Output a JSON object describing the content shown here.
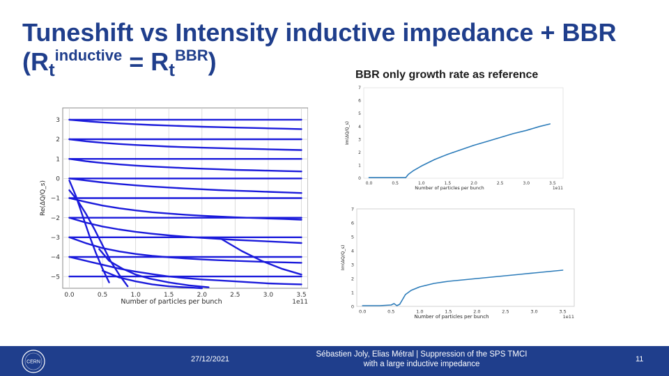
{
  "slide": {
    "title_line1": "Tuneshift vs Intensity inductive impedance + BBR",
    "title_open": "(R",
    "title_sub1": "t",
    "title_sup1": "inductive",
    "title_equals": " = R",
    "title_sub2": "t",
    "title_sup2": "BBR",
    "title_close": ")",
    "subtitle": "BBR only growth rate as reference"
  },
  "footer": {
    "date": "27/12/2021",
    "authors_line1": "Sébastien Joly, Elias Métral | Suppression of the SPS TMCI",
    "authors_line2": "with a large inductive impedance",
    "page_number": "11",
    "logo_text": "CERN"
  },
  "colors": {
    "brand": "#1f3e8c",
    "mode_line": "#1a1adb",
    "growth_line": "#2b7bb9"
  },
  "chart_data": [
    {
      "type": "line",
      "xlabel": "Number of particles per bunch",
      "ylabel": "Re(ΔQ/Q_s)",
      "x_offset_label": "1e11",
      "x_ticks": [
        "0.0",
        "0.5",
        "1.0",
        "1.5",
        "2.0",
        "2.5",
        "3.0",
        "3.5"
      ],
      "y_ticks": [
        "−5",
        "−4",
        "−3",
        "−2",
        "−1",
        "0",
        "1",
        "2",
        "3"
      ],
      "xlim": [
        -0.1,
        3.6
      ],
      "ylim": [
        -5.6,
        3.6
      ],
      "grid": true,
      "series_x": [
        0.0,
        0.25,
        0.5,
        0.75,
        1.0,
        1.25,
        1.5,
        1.75,
        2.0,
        2.25,
        2.5,
        2.75,
        3.0,
        3.25,
        3.5
      ],
      "series": [
        {
          "values": [
            3.0,
            3.0,
            3.0,
            3.0,
            3.0,
            3.0,
            3.0,
            3.0,
            3.0,
            3.0,
            3.0,
            3.0,
            3.0,
            3.0,
            3.0
          ]
        },
        {
          "values": [
            3.0,
            2.92,
            2.86,
            2.81,
            2.77,
            2.73,
            2.7,
            2.67,
            2.64,
            2.62,
            2.6,
            2.58,
            2.56,
            2.54,
            2.52
          ]
        },
        {
          "values": [
            2.0,
            2.0,
            2.0,
            2.0,
            2.0,
            2.0,
            2.0,
            2.0,
            2.0,
            2.0,
            2.0,
            2.0,
            2.0,
            2.0,
            2.0
          ]
        },
        {
          "values": [
            2.0,
            1.9,
            1.82,
            1.76,
            1.71,
            1.67,
            1.63,
            1.6,
            1.57,
            1.55,
            1.53,
            1.51,
            1.49,
            1.47,
            1.45
          ]
        },
        {
          "values": [
            1.0,
            1.0,
            1.0,
            1.0,
            1.0,
            1.0,
            1.0,
            1.0,
            1.0,
            1.0,
            1.0,
            1.0,
            1.0,
            1.0,
            1.0
          ]
        },
        {
          "values": [
            1.0,
            0.88,
            0.79,
            0.72,
            0.66,
            0.61,
            0.57,
            0.53,
            0.5,
            0.47,
            0.44,
            0.42,
            0.4,
            0.38,
            0.36
          ]
        },
        {
          "values": [
            0.0,
            0.0,
            0.0,
            0.0,
            0.0,
            0.0,
            0.0,
            0.0,
            0.0,
            0.0,
            0.0,
            0.0,
            0.0,
            0.0,
            0.0
          ]
        },
        {
          "values": [
            0.0,
            -0.1,
            -0.2,
            -0.28,
            -0.35,
            -0.41,
            -0.46,
            -0.51,
            -0.55,
            -0.59,
            -0.62,
            -0.65,
            -0.68,
            -0.71,
            -0.74
          ]
        },
        {
          "values": [
            -1.0,
            -1.0,
            -1.0,
            -1.0,
            -1.0,
            -1.0,
            -1.0,
            -1.0,
            -1.0,
            -1.0,
            -1.0,
            -1.0,
            -1.0,
            -1.0,
            -1.0
          ]
        },
        {
          "values": [
            -1.0,
            -1.2,
            -1.38,
            -1.52,
            -1.63,
            -1.72,
            -1.79,
            -1.85,
            -1.9,
            -1.94,
            -1.98,
            -2.01,
            -2.04,
            -2.07,
            -2.1
          ]
        },
        {
          "values": [
            -2.0,
            -2.0,
            -2.0,
            -2.0,
            -2.0,
            -2.0,
            -2.0,
            -2.0,
            -2.0,
            -2.0,
            -2.0,
            -2.0,
            -2.0,
            -2.0,
            -2.0
          ]
        },
        {
          "values": [
            -2.0,
            -2.25,
            -2.45,
            -2.6,
            -2.72,
            -2.82,
            -2.9,
            -2.97,
            -3.03,
            -3.08,
            -3.13,
            -3.17,
            -3.21,
            -3.25,
            -3.29
          ]
        },
        {
          "values": [
            -3.0,
            -3.0,
            -3.0,
            -3.0,
            -3.0,
            -3.0,
            -3.0,
            -3.0,
            -3.0,
            -3.0,
            -3.0,
            -3.0,
            -3.0,
            -3.0,
            -3.0
          ]
        },
        {
          "values": [
            -3.0,
            -3.3,
            -3.55,
            -3.72,
            -3.85,
            -3.95,
            -4.02,
            -4.08,
            -4.13,
            -4.17,
            -4.2,
            -4.23,
            -4.26,
            -4.28,
            -4.3
          ]
        },
        {
          "values": [
            -4.0,
            -4.0,
            -4.0,
            -4.0,
            -4.0,
            -4.0,
            -4.0,
            -4.0,
            -4.0,
            -4.0,
            -4.0,
            -4.0,
            -4.0,
            -4.0,
            -4.0
          ]
        },
        {
          "values": [
            -4.0,
            -4.2,
            -4.4,
            -4.6,
            -4.75,
            -4.88,
            -5.0,
            -5.08,
            -5.15,
            -5.2,
            -5.25,
            -5.3,
            -5.35,
            -5.38,
            -5.4
          ]
        },
        {
          "values": [
            -5.0,
            -5.0,
            -5.0,
            -5.0,
            -5.0,
            -5.0,
            -5.0,
            -5.0,
            -5.0,
            -5.0,
            -5.0,
            -5.0,
            -5.0,
            -5.0,
            -5.0
          ]
        }
      ],
      "extra_curves": [
        {
          "x": [
            0.0,
            0.12,
            0.25,
            0.38,
            0.5,
            0.62,
            0.75,
            0.88
          ],
          "y": [
            -0.6,
            -1.1,
            -1.8,
            -2.6,
            -3.4,
            -4.2,
            -4.9,
            -5.5
          ]
        },
        {
          "x": [
            0.0,
            0.1,
            0.2,
            0.3,
            0.4,
            0.5,
            0.6
          ],
          "y": [
            -0.1,
            -0.9,
            -1.9,
            -2.9,
            -3.8,
            -4.6,
            -5.3
          ]
        },
        {
          "x": [
            0.45,
            0.6,
            0.8,
            1.0,
            1.2,
            1.5,
            1.8,
            2.1
          ],
          "y": [
            -3.6,
            -4.2,
            -4.6,
            -4.9,
            -5.1,
            -5.3,
            -5.45,
            -5.55
          ]
        },
        {
          "x": [
            0.5,
            0.75,
            1.0,
            1.25,
            1.5,
            1.75,
            2.0
          ],
          "y": [
            -4.7,
            -5.05,
            -5.25,
            -5.4,
            -5.5,
            -5.55,
            -5.6
          ]
        },
        {
          "x": [
            2.3,
            2.6,
            2.9,
            3.2,
            3.5
          ],
          "y": [
            -3.1,
            -3.7,
            -4.2,
            -4.6,
            -4.9
          ]
        }
      ]
    },
    {
      "type": "line",
      "xlabel": "Number of particles per bunch",
      "ylabel": "Im(ΔQ/Q_s)",
      "x_offset_label": "1e11",
      "x_ticks": [
        "0.0",
        "0.5",
        "1.0",
        "1.5",
        "2.0",
        "2.5",
        "3.0",
        "3.5"
      ],
      "y_ticks": [
        "0",
        "1",
        "2",
        "3",
        "4",
        "5",
        "6",
        "7"
      ],
      "xlim": [
        -0.1,
        3.7
      ],
      "ylim": [
        0,
        7
      ],
      "grid": false,
      "x": [
        0.0,
        0.3,
        0.6,
        0.7,
        0.75,
        0.85,
        1.0,
        1.25,
        1.5,
        1.75,
        2.0,
        2.25,
        2.5,
        2.75,
        3.0,
        3.25,
        3.45
      ],
      "values": [
        0.05,
        0.05,
        0.05,
        0.05,
        0.3,
        0.6,
        0.95,
        1.45,
        1.85,
        2.2,
        2.55,
        2.85,
        3.15,
        3.45,
        3.7,
        4.0,
        4.2
      ]
    },
    {
      "type": "line",
      "xlabel": "Number of particles per bunch",
      "ylabel": "Im(ΔQ/Q_s)",
      "x_offset_label": "1e11",
      "x_ticks": [
        "0.0",
        "0.5",
        "1.0",
        "1.5",
        "2.0",
        "2.5",
        "3.0",
        "3.5"
      ],
      "y_ticks": [
        "0",
        "1",
        "2",
        "3",
        "4",
        "5",
        "6",
        "7"
      ],
      "xlim": [
        -0.1,
        3.7
      ],
      "ylim": [
        0,
        7
      ],
      "grid": false,
      "x": [
        0.0,
        0.3,
        0.5,
        0.55,
        0.6,
        0.65,
        0.7,
        0.75,
        0.85,
        1.0,
        1.25,
        1.5,
        1.75,
        2.0,
        2.25,
        2.5,
        2.75,
        3.0,
        3.25,
        3.5
      ],
      "values": [
        0.05,
        0.05,
        0.1,
        0.2,
        0.05,
        0.15,
        0.5,
        0.85,
        1.15,
        1.4,
        1.65,
        1.8,
        1.9,
        2.0,
        2.1,
        2.2,
        2.3,
        2.4,
        2.5,
        2.6
      ]
    }
  ]
}
